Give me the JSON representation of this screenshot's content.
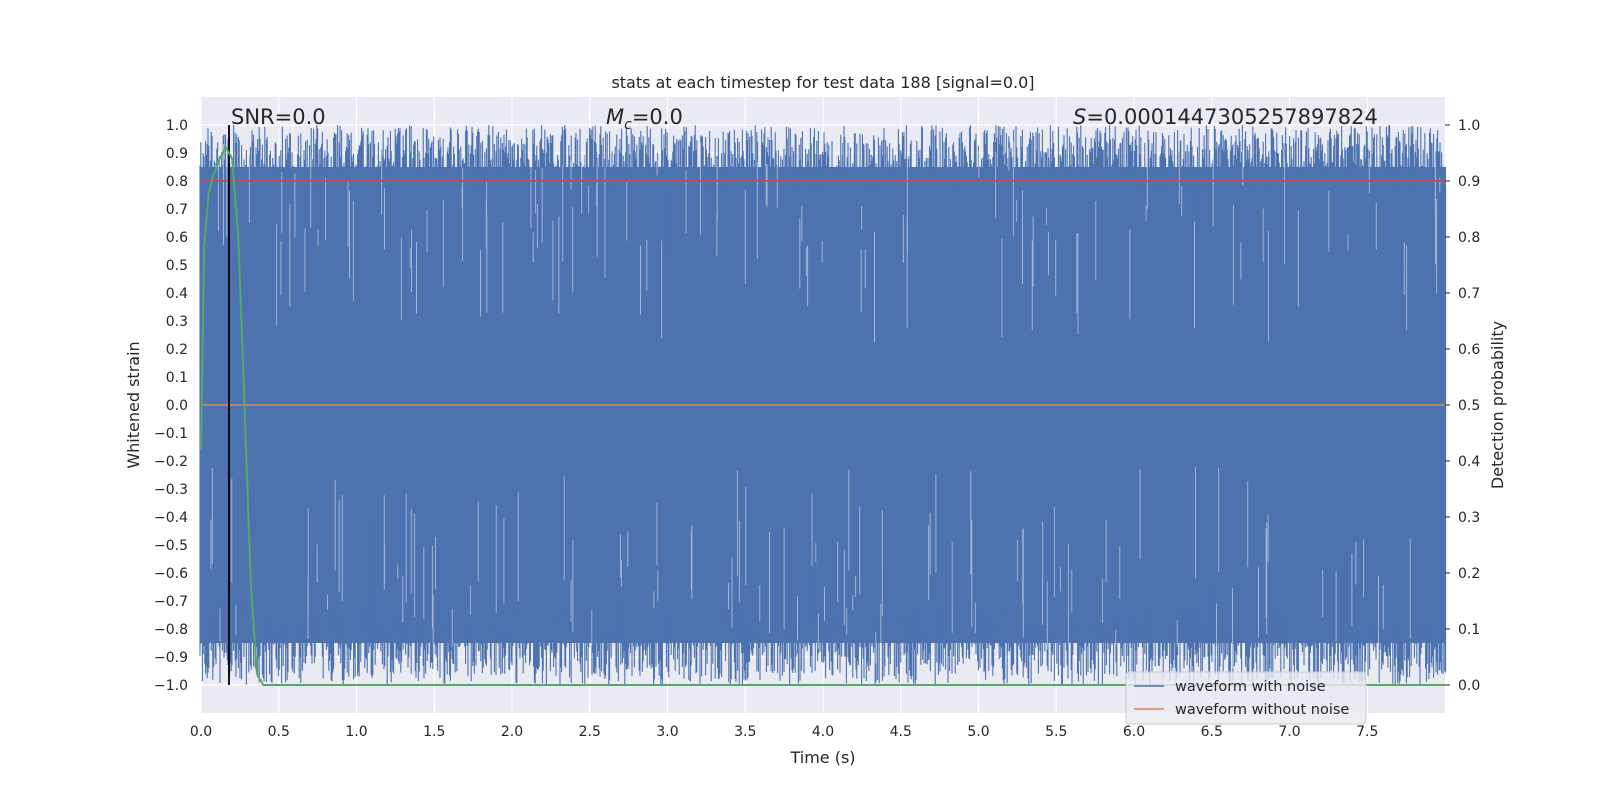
{
  "chart_data": {
    "type": "line",
    "title": "stats at each timestep for test data 188 [signal=0.0]",
    "xlabel": "Time (s)",
    "ylabel": "Whitened strain",
    "y2label": "Detection probability",
    "xlim": [
      0.0,
      8.0
    ],
    "ylim": [
      -1.1,
      1.1
    ],
    "y2lim": [
      -0.05,
      1.05
    ],
    "xticks": [
      "0.0",
      "0.5",
      "1.0",
      "1.5",
      "2.0",
      "2.5",
      "3.0",
      "3.5",
      "4.0",
      "4.5",
      "5.0",
      "5.5",
      "6.0",
      "6.5",
      "7.0",
      "7.5"
    ],
    "yticks": [
      "1.0",
      "0.9",
      "0.8",
      "0.7",
      "0.6",
      "0.5",
      "0.4",
      "0.3",
      "0.2",
      "0.1",
      "0.0",
      "−0.1",
      "−0.2",
      "−0.3",
      "−0.4",
      "−0.5",
      "−0.6",
      "−0.7",
      "−0.8",
      "−0.9",
      "−1.0"
    ],
    "y2ticks": [
      "1.0",
      "0.9",
      "0.8",
      "0.7",
      "0.6",
      "0.5",
      "0.4",
      "0.3",
      "0.2",
      "0.1",
      "0.0"
    ],
    "grid": true,
    "legend_position": "lower-right",
    "annotations": {
      "snr": "SNR=0.0",
      "mc_symbol": "M",
      "mc_sub": "c",
      "mc_value": "=0.0",
      "s_symbol": "S",
      "s_value": "=0.0001447305257897824"
    },
    "series": [
      {
        "name": "waveform with noise",
        "color": "#4c72b0",
        "axis": "left",
        "description": "dense noise spanning approx -1.0 to 1.0 over 0 to 8 s"
      },
      {
        "name": "waveform without noise",
        "color": "#dd8452",
        "axis": "left",
        "values_constant": 0.0
      }
    ],
    "detection_probability": {
      "color": "#55a868",
      "axis": "right",
      "x": [
        0.0,
        0.02,
        0.05,
        0.08,
        0.12,
        0.16,
        0.2,
        0.24,
        0.28,
        0.32,
        0.36,
        0.4,
        8.0
      ],
      "y": [
        0.42,
        0.78,
        0.88,
        0.91,
        0.94,
        0.96,
        0.94,
        0.8,
        0.5,
        0.18,
        0.02,
        0.0,
        0.0
      ]
    },
    "threshold_line": {
      "color": "#c44e52",
      "y2_value": 0.9
    },
    "vertical_marker": {
      "color": "#000000",
      "x": 0.18
    },
    "colors": {
      "background": "#eaeaf2",
      "grid": "#ffffff"
    }
  }
}
